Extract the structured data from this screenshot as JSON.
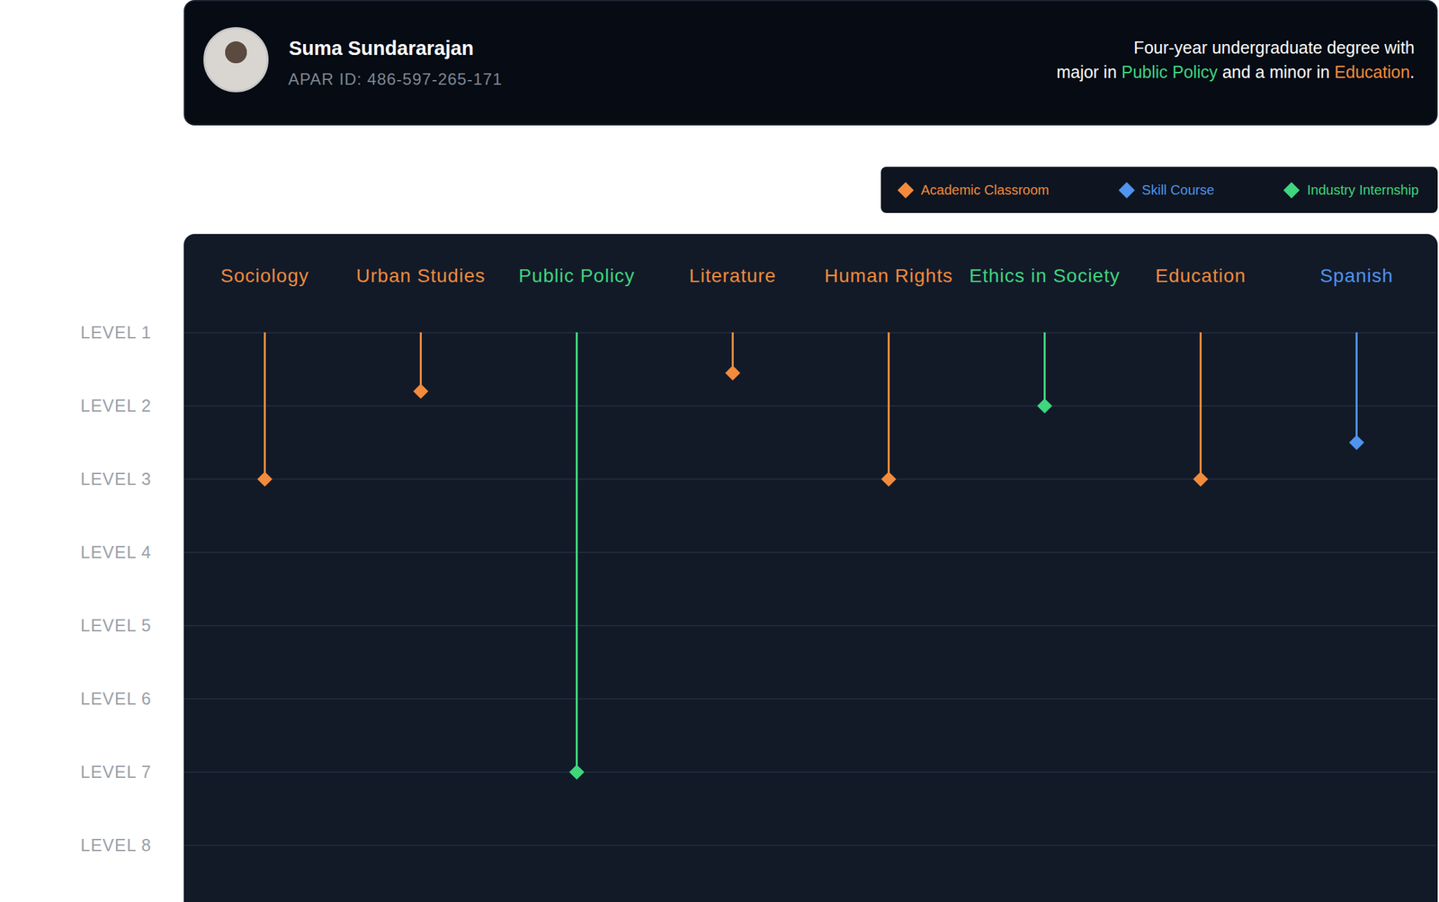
{
  "header": {
    "name": "Suma Sundararajan",
    "id": "APAR ID: 486-597-265-171",
    "description": [
      [
        {
          "text": "Four-year undergraduate degree with",
          "color": "#ffffff"
        }
      ],
      [
        {
          "text": "major in ",
          "color": "#ffffff"
        },
        {
          "text": "Public Policy",
          "color": "#3fd67e"
        },
        {
          "text": " and a minor in ",
          "color": "#ffffff"
        },
        {
          "text": "Education",
          "color": "#f28b3c"
        },
        {
          "text": ".",
          "color": "#ffffff"
        }
      ]
    ]
  },
  "chart_data": {
    "type": "lollipop",
    "categories": [
      "Sociology",
      "Urban Studies",
      "Public Policy",
      "Literature",
      "Human Rights",
      "Ethics in Society",
      "Education",
      "Spanish"
    ],
    "series": [
      {
        "name": "Academic Classroom",
        "color": "#f28b3c",
        "marker": "diamond",
        "values": [
          3,
          1.8,
          null,
          1.55,
          3,
          null,
          3,
          null
        ]
      },
      {
        "name": "Skill Course",
        "color": "#4f94ef",
        "marker": "diamond",
        "values": [
          null,
          null,
          null,
          null,
          null,
          null,
          null,
          2.5
        ]
      },
      {
        "name": "Industry Internship",
        "color": "#3fd67e",
        "marker": "diamond",
        "values": [
          null,
          null,
          7,
          null,
          null,
          2,
          null,
          null
        ]
      }
    ],
    "ylim": [
      1,
      8
    ],
    "yticks": [
      {
        "value": 1,
        "label": "LEVEL 1"
      },
      {
        "value": 2,
        "label": "LEVEL 2"
      },
      {
        "value": 3,
        "label": "LEVEL 3"
      },
      {
        "value": 4,
        "label": "LEVEL 4"
      },
      {
        "value": 5,
        "label": "LEVEL 5"
      },
      {
        "value": 6,
        "label": "LEVEL 6"
      },
      {
        "value": 7,
        "label": "LEVEL 7"
      },
      {
        "value": 8,
        "label": "LEVEL 8"
      }
    ],
    "grid": true,
    "legend": "top-right"
  }
}
